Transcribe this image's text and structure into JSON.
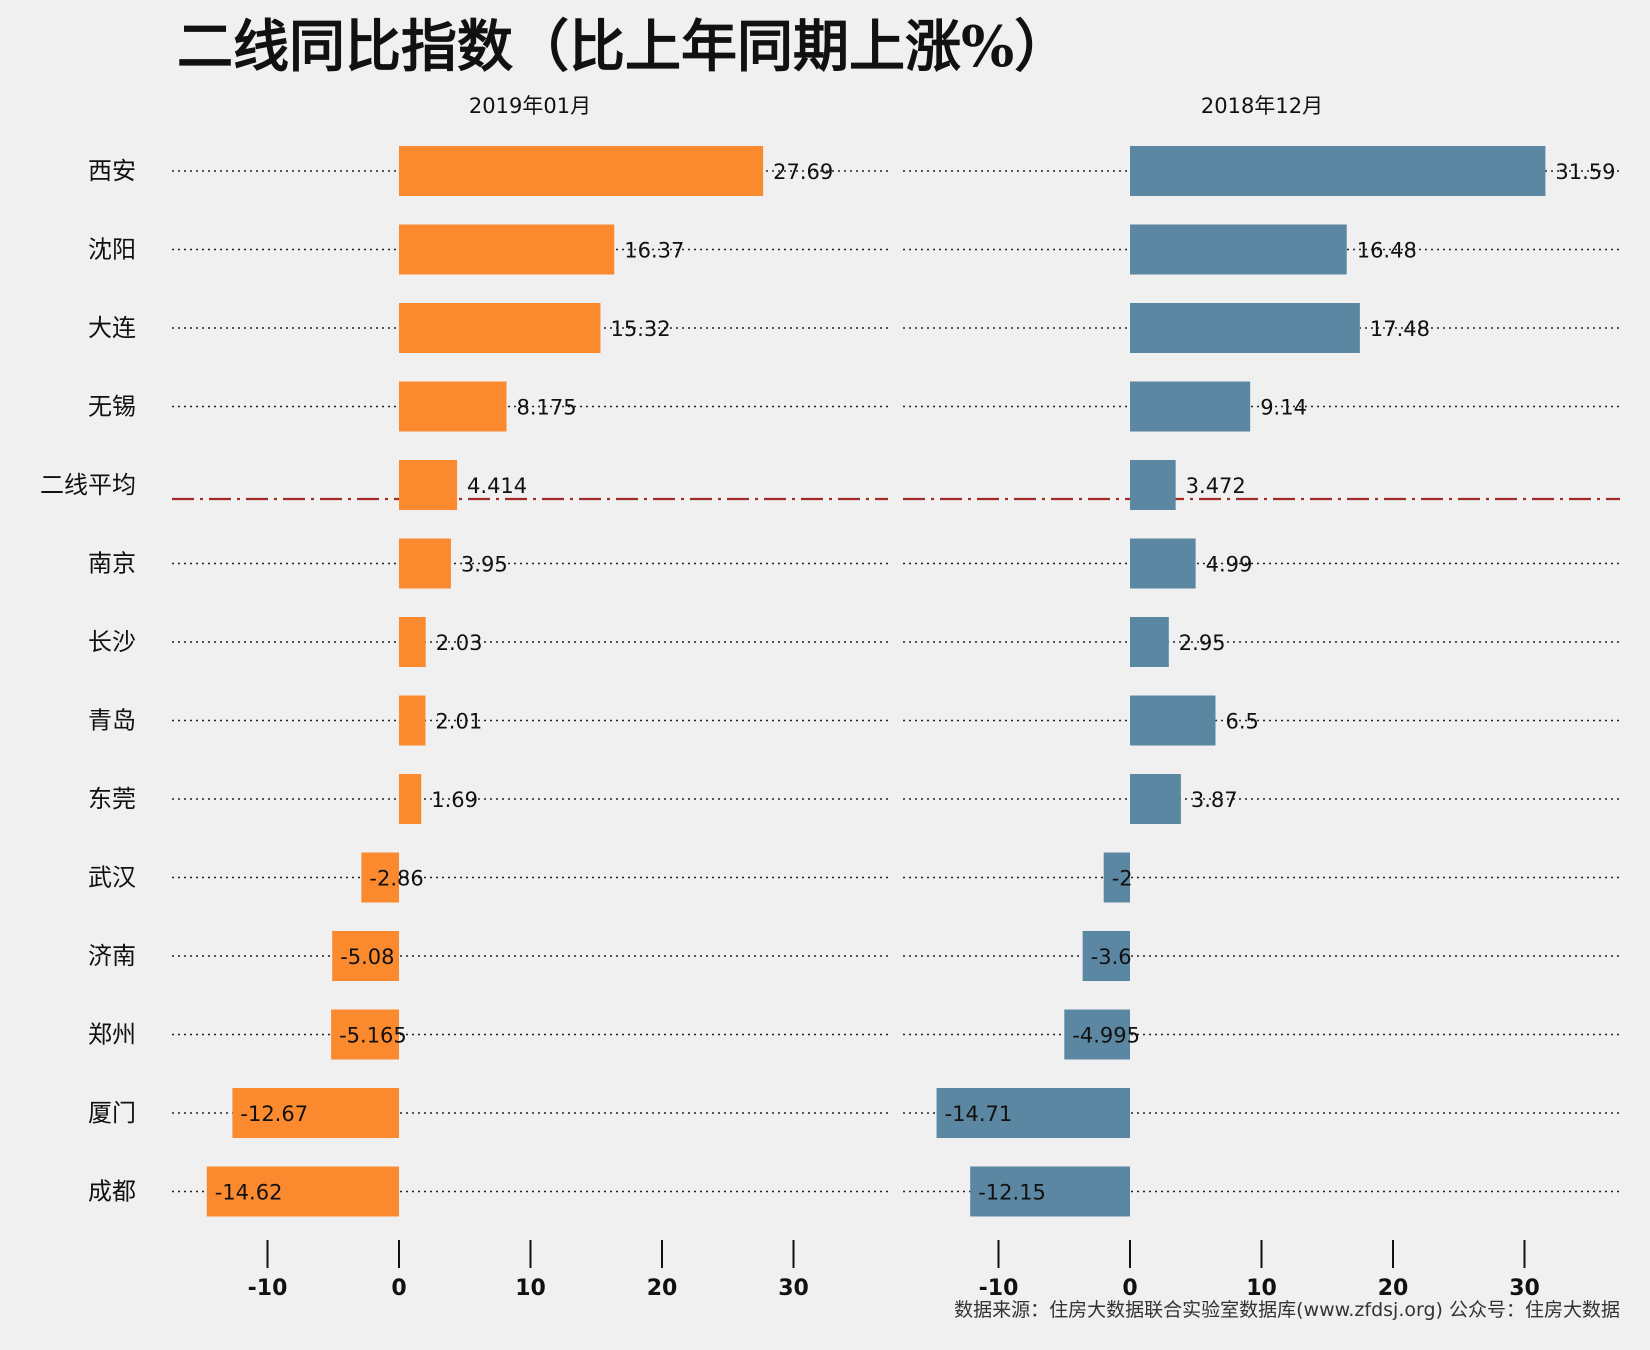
{
  "chart_data": {
    "type": "bar",
    "title": "二线同比指数（比上年同期上涨%）",
    "source_note": "数据来源：住房大数据联合实验室数据库(www.zfdsj.org) 公众号：住房大数据",
    "categories": [
      "西安",
      "沈阳",
      "大连",
      "无锡",
      "二线平均",
      "南京",
      "长沙",
      "青岛",
      "东莞",
      "武汉",
      "济南",
      "郑州",
      "厦门",
      "成都"
    ],
    "highlight_category": "二线平均",
    "xlim": [
      -15,
      33
    ],
    "xticks": [
      -10,
      0,
      10,
      20,
      30
    ],
    "grid": false,
    "series": [
      {
        "name": "2019年01月",
        "color": "#FB8A2F",
        "values": [
          27.69,
          16.37,
          15.32,
          8.175,
          4.414,
          3.95,
          2.03,
          2.01,
          1.69,
          -2.86,
          -5.08,
          -5.165,
          -12.67,
          -14.62
        ],
        "labels": [
          "27.69",
          "16.37",
          "15.32",
          "8.175",
          "4.414",
          "3.95",
          "2.03",
          "2.01",
          "1.69",
          "-2.86",
          "-5.08",
          "-5.165",
          "-12.67",
          "-14.62"
        ]
      },
      {
        "name": "2018年12月",
        "color": "#5B87A2",
        "values": [
          31.59,
          16.48,
          17.48,
          9.14,
          3.472,
          4.99,
          2.95,
          6.5,
          3.87,
          -2,
          -3.6,
          -4.995,
          -14.71,
          -12.15
        ],
        "labels": [
          "31.59",
          "16.48",
          "17.48",
          "9.14",
          "3.472",
          "4.99",
          "2.95",
          "6.5",
          "3.87",
          "-2",
          "-3.6",
          "-4.995",
          "-14.71",
          "-12.15"
        ]
      }
    ],
    "average_line_color": "#A52A2A"
  }
}
